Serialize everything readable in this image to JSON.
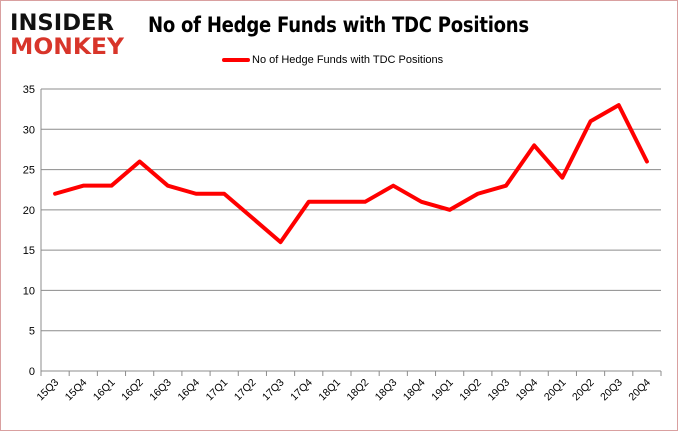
{
  "logo": {
    "line1": "INSIDER",
    "line2": "MONKEY"
  },
  "chart_data": {
    "type": "line",
    "title": "No of Hedge Funds with TDC Positions",
    "categories": [
      "15Q3",
      "15Q4",
      "16Q1",
      "16Q2",
      "16Q3",
      "16Q4",
      "17Q1",
      "17Q2",
      "17Q3",
      "17Q4",
      "18Q1",
      "18Q2",
      "18Q3",
      "18Q4",
      "19Q1",
      "19Q2",
      "19Q3",
      "19Q4",
      "20Q1",
      "20Q2",
      "20Q3",
      "20Q4"
    ],
    "series": [
      {
        "name": "No of Hedge Funds with TDC Positions",
        "color": "#ff0000",
        "values": [
          22,
          23,
          23,
          26,
          23,
          22,
          22,
          19,
          16,
          21,
          21,
          21,
          23,
          21,
          20,
          22,
          23,
          28,
          24,
          31,
          33,
          26
        ]
      }
    ],
    "ylim": [
      0,
      35
    ],
    "yticks": [
      0,
      5,
      10,
      15,
      20,
      25,
      30,
      35
    ],
    "grid": true,
    "legend": "top"
  }
}
